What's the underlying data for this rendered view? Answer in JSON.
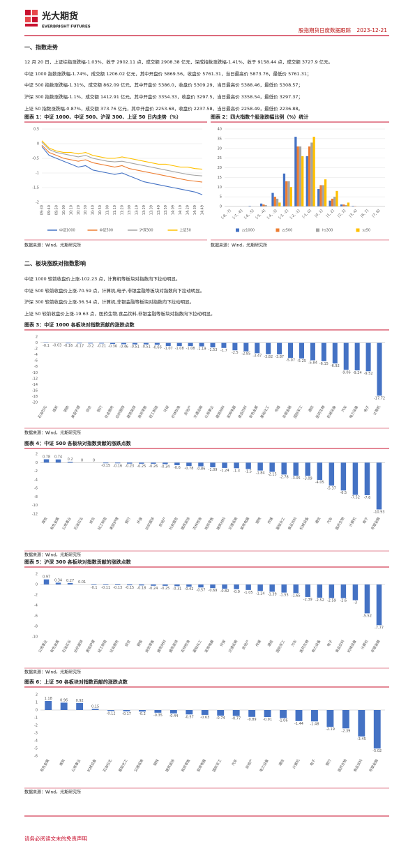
{
  "header": {
    "logo_cn": "光大期货",
    "logo_en": "EVERBRIGHT FUTURES",
    "report_title": "股指期货日度数据跟踪",
    "date": "2023-12-21"
  },
  "sections": [
    {
      "title": "一、指数走势",
      "paragraphs": [
        "12 月 20 日，上证综指涨跌幅-1.03%，收于 2902.11 点，成交额 2908.38 亿元，深成指数涨跌幅-1.41%，收于 9158.44 点，成交额 3727.9 亿元。",
        "中证 1000 指数涨跌幅-1.74%，成交额 1206.02 亿元，其中开盘价 5869.56，收盘价 5761.31，当日最高价 5873.76，最低价 5761.31；",
        "中证 500 指数涨跌幅-1.31%，成交额 862.09 亿元，其中开盘价 5386.0，收盘价 5309.29，当日最高价 5388.46，最低价 5308.57；",
        "沪深 300 指数涨跌幅-1.1%，成交额 1412.91 亿元，其中开盘价 3354.33，收盘价 3297.5，当日最高价 3358.54，最低价 3297.37；",
        "上证 50 指数涨跌幅-0.87%，成交额 373.76 亿元，其中开盘价 2253.68，收盘价 2237.58，当日最高价 2258.49，最低价 2236.88。"
      ]
    },
    {
      "title": "二、板块涨跌对指数影响",
      "paragraphs": [
        "中证 1000 较前收盘价上涨-102.23 点，计算机等板块对指数向下拉动明显。",
        "中证 500 较前收盘价上涨-70.59 点，计算机,电子,非银金融等板块对指数向下拉动明显。",
        "沪深 300 较前收盘价上涨-36.54 点，计算机,非银金融等板块对指数向下拉动明显。",
        "上证 50 较前收盘价上涨-19.63 点，医药生物,食品饮料,非银金融等板块对指数向下拉动明显。"
      ]
    }
  ],
  "chart_data": [
    {
      "type": "line",
      "title": "图表 1：中证 1000、中证 500、沪深 300、上证 50 日内走势（%）",
      "source": "数据来源：Wind，光期研究所",
      "categories": [
        "09:30",
        "09:40",
        "09:50",
        "10:00",
        "10:10",
        "10:20",
        "10:30",
        "10:40",
        "10:50",
        "11:00",
        "11:10",
        "11:20",
        "13:09",
        "13:19",
        "13:29",
        "13:39",
        "13:49",
        "13:59",
        "14:09",
        "14:19",
        "14:29",
        "14:39",
        "14:49"
      ],
      "ylim": [
        -2,
        0.5
      ],
      "yticks": [
        0.5,
        0,
        -0.5,
        -1,
        -1.5,
        -2
      ],
      "series": [
        {
          "name": "中证1000",
          "color": "#4472c4",
          "values": [
            -0.1,
            -0.4,
            -0.5,
            -0.6,
            -0.7,
            -0.8,
            -0.75,
            -0.9,
            -0.95,
            -1.0,
            -1.05,
            -1.0,
            -1.1,
            -1.2,
            -1.3,
            -1.35,
            -1.4,
            -1.45,
            -1.5,
            -1.55,
            -1.6,
            -1.65,
            -1.74
          ]
        },
        {
          "name": "中证500",
          "color": "#ed7d31",
          "values": [
            -0.05,
            -0.3,
            -0.4,
            -0.5,
            -0.55,
            -0.6,
            -0.55,
            -0.65,
            -0.7,
            -0.75,
            -0.8,
            -0.75,
            -0.85,
            -0.9,
            -0.95,
            -1.0,
            -1.05,
            -1.1,
            -1.15,
            -1.2,
            -1.25,
            -1.28,
            -1.31
          ]
        },
        {
          "name": "沪深300",
          "color": "#a5a5a5",
          "values": [
            0.05,
            -0.2,
            -0.3,
            -0.35,
            -0.4,
            -0.45,
            -0.4,
            -0.5,
            -0.55,
            -0.6,
            -0.62,
            -0.6,
            -0.65,
            -0.7,
            -0.75,
            -0.8,
            -0.85,
            -0.9,
            -0.95,
            -1.0,
            -1.05,
            -1.08,
            -1.1
          ]
        },
        {
          "name": "上证50",
          "color": "#ffc000",
          "values": [
            0.1,
            -0.15,
            -0.25,
            -0.3,
            -0.3,
            -0.35,
            -0.3,
            -0.4,
            -0.45,
            -0.5,
            -0.5,
            -0.45,
            -0.5,
            -0.55,
            -0.6,
            -0.65,
            -0.7,
            -0.7,
            -0.75,
            -0.8,
            -0.8,
            -0.85,
            -0.87
          ]
        }
      ]
    },
    {
      "type": "grouped_bar",
      "title": "图表 2：四大指数个股涨跌幅比例（%）统计",
      "source": "数据来源：Wind，光期研究所",
      "categories": [
        "[-8, -7]",
        "[-7, -6]",
        "[-6, -5]",
        "[-5, -4]",
        "[-4, -3]",
        "[-3, -2]",
        "[-2, -1]",
        "[-1, 0]",
        "[0, 1]",
        "[1, 2]",
        "[2, 3]",
        "[3, 4]",
        "[6, 7]",
        "[7, 8]"
      ],
      "ylim": [
        0,
        40
      ],
      "yticks": [
        0,
        5,
        10,
        15,
        20,
        25,
        30,
        35,
        40
      ],
      "series": [
        {
          "name": "zz1000",
          "color": "#4472c4",
          "values": [
            0,
            0,
            0.3,
            1.5,
            7,
            17,
            36,
            26,
            9,
            3,
            1,
            0.3,
            0,
            0
          ]
        },
        {
          "name": "zz500",
          "color": "#ed7d31",
          "values": [
            0,
            0,
            0,
            1,
            5,
            13,
            31,
            31,
            11,
            4,
            1,
            0.2,
            0,
            0
          ]
        },
        {
          "name": "hs300",
          "color": "#a5a5a5",
          "values": [
            0,
            0,
            0,
            0.7,
            4,
            13,
            31,
            33,
            11,
            5,
            0.7,
            0,
            0,
            0
          ]
        },
        {
          "name": "sz50",
          "color": "#ffc000",
          "values": [
            0,
            0,
            0,
            0,
            2,
            10,
            26,
            36,
            14,
            8,
            2,
            0,
            0,
            0
          ]
        }
      ]
    },
    {
      "type": "bar",
      "title": "图表 3：中证 1000 各板块对指数贡献的涨跌点数",
      "source": "数据来源：Wind，光期研究所",
      "color": "#4472c4",
      "categories": [
        "石油石化",
        "煤炭",
        "钢铁",
        "美容护理",
        "综合",
        "银行",
        "社会服务",
        "纺织服饰",
        "建筑装饰",
        "商贸零售",
        "轻工制造",
        "环保",
        "农林牧渔",
        "房地产",
        "交通运输",
        "公用事业",
        "建筑材料",
        "家用电器",
        "食品饮料",
        "有色金属",
        "基础化工",
        "传媒",
        "非银金融",
        "国防军工",
        "通信",
        "医药生物",
        "机械设备",
        "汽车",
        "电力设备",
        "电子",
        "计算机"
      ],
      "values": [
        -0.1,
        -0.03,
        -0.16,
        -0.17,
        -0.2,
        -0.21,
        -0.36,
        -0.46,
        -0.51,
        -0.51,
        -0.66,
        -1.07,
        -1.08,
        -1.08,
        -1.19,
        -1.53,
        -1.7,
        -2.5,
        -2.85,
        -3.47,
        -3.82,
        -3.87,
        -5.07,
        -5.25,
        -5.84,
        -6.15,
        -6.92,
        -9.06,
        -9.24,
        -9.52,
        -17.72
      ],
      "ylim": [
        -20,
        2
      ],
      "yticks": [
        2,
        0,
        -2,
        -4,
        -6,
        -8,
        -10,
        -12,
        -14,
        -16,
        -18,
        -20
      ]
    },
    {
      "type": "bar",
      "title": "图表 4：中证 500 各板块对指数贡献的涨跌点数",
      "source": "数据来源：Wind，光期研究所",
      "color": "#4472c4",
      "categories": [
        "煤炭",
        "有色金属",
        "公用事业",
        "石油石化",
        "综合",
        "轻工制造",
        "美容护理",
        "银行",
        "环保",
        "纺织服饰",
        "房地产",
        "社会服务",
        "建筑装饰",
        "农林牧渔",
        "商贸零售",
        "建筑材料",
        "交通运输",
        "家用电器",
        "钢铁",
        "传媒",
        "基础化工",
        "食品饮料",
        "机械设备",
        "通信",
        "汽车",
        "医药生物",
        "计算机",
        "电子",
        "非银金融"
      ],
      "values": [
        0.78,
        0.74,
        0.2,
        0,
        0,
        -0.15,
        -0.16,
        -0.23,
        -0.25,
        -0.26,
        -0.34,
        -0.6,
        -0.78,
        -0.86,
        -1.09,
        -1.24,
        -1.3,
        -1.5,
        -1.84,
        -2.15,
        -2.78,
        -3.05,
        -3.09,
        -4.05,
        -5.37,
        -6.5,
        -7.52,
        -7.6,
        -10.93
      ],
      "ylim": [
        -12,
        2
      ],
      "yticks": [
        2,
        0,
        -2,
        -4,
        -6,
        -8,
        -10,
        -12
      ]
    },
    {
      "type": "bar",
      "title": "图表 5：沪深 300 各板块对指数贡献的涨跌点数",
      "source": "数据来源：Wind，光期研究所",
      "color": "#4472c4",
      "categories": [
        "公用事业",
        "有色金属",
        "石油石化",
        "纺织服饰",
        "美容护理",
        "轻工制造",
        "社会服务",
        "综合",
        "钢铁",
        "商贸零售",
        "建筑材料",
        "建筑装饰",
        "农林牧渔",
        "基础化工",
        "家用电器",
        "环保",
        "交通运输",
        "房地产",
        "传媒",
        "通信",
        "国防军工",
        "汽车",
        "医药生物",
        "电力设备",
        "电子",
        "食品饮料",
        "机械设备",
        "计算机",
        "非银金融"
      ],
      "values": [
        0.97,
        0.34,
        0.27,
        0.01,
        -0.1,
        -0.11,
        -0.13,
        -0.15,
        -0.18,
        -0.24,
        -0.25,
        -0.31,
        -0.42,
        -0.57,
        -0.69,
        -0.82,
        -0.9,
        -1.05,
        -1.24,
        -1.39,
        -1.55,
        -1.65,
        -2.39,
        -2.52,
        -2.59,
        -2.6,
        -3,
        -5.52,
        -7.77
      ],
      "ylim": [
        -10,
        2
      ],
      "yticks": [
        2,
        0,
        -2,
        -4,
        -6,
        -8,
        -10
      ]
    },
    {
      "type": "bar",
      "title": "图表 6：上证 50 各板块对指数贡献的涨跌点数",
      "source": "数据来源：Wind，光期研究所",
      "color": "#4472c4",
      "categories": [
        "有色金属",
        "煤炭",
        "公用事业",
        "机械设备",
        "石油石化",
        "基础化工",
        "交通运输",
        "钢铁",
        "建筑装饰",
        "商贸零售",
        "家用电器",
        "国防军工",
        "汽车",
        "房地产",
        "电力设备",
        "通信",
        "计算机",
        "电子",
        "银行",
        "医药生物",
        "食品饮料",
        "非银金融"
      ],
      "values": [
        1.18,
        0.96,
        0.92,
        0.15,
        -0.12,
        -0.17,
        -0.2,
        -0.35,
        -0.44,
        -0.57,
        -0.63,
        -0.74,
        -0.77,
        -0.89,
        -0.91,
        -1.06,
        -1.44,
        -1.48,
        -2.19,
        -2.39,
        -3.45,
        -5.02
      ],
      "ylim": [
        -6,
        2
      ],
      "yticks": [
        2,
        1,
        0,
        -1,
        -2,
        -3,
        -4,
        -5,
        -6
      ]
    }
  ],
  "footer": "请务必阅读文末的免责声明"
}
